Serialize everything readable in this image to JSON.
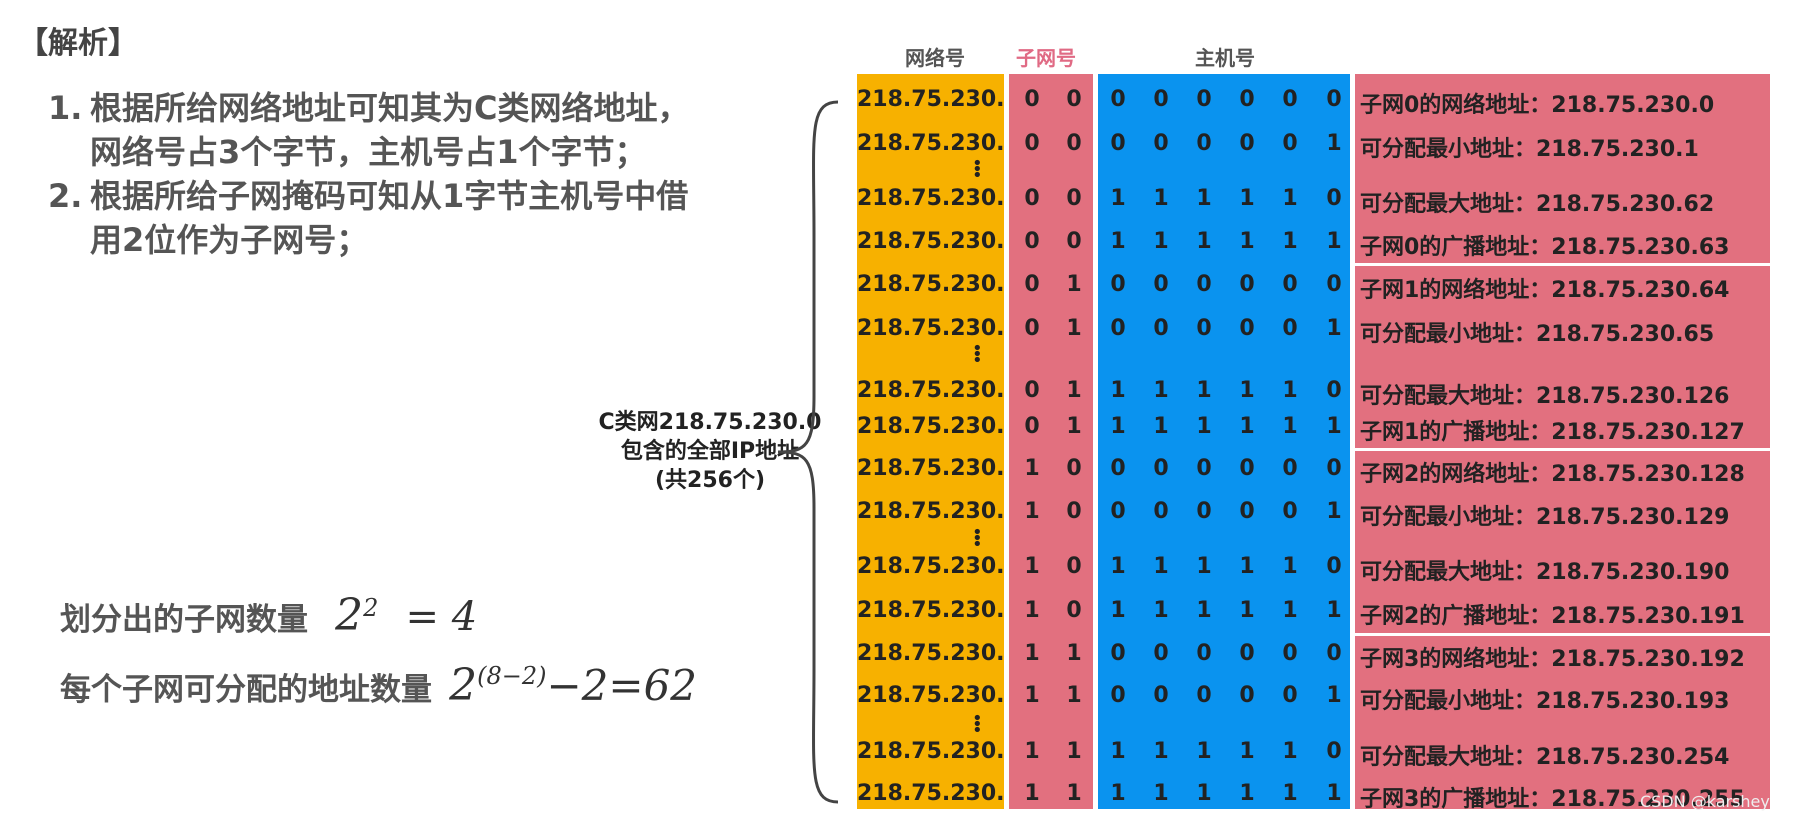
{
  "title": "【解析】",
  "points": [
    {
      "num": "1.",
      "line1": "根据所给网络地址可知其为C类网络地址，",
      "line2": "网络号占3个字节，主机号占1个字节；"
    },
    {
      "num": "2.",
      "line1": "根据所给子网掩码可知从1字节主机号中借",
      "line2": "用2位作为子网号；"
    }
  ],
  "subnet_count": {
    "label": "划分出的子网数量",
    "base": "2",
    "exp": "2",
    "rest": "= 4"
  },
  "hosts_per_subnet": {
    "label": "每个子网可分配的地址数量",
    "base": "2",
    "exp": "(8−2)",
    "rest": "−2=62"
  },
  "brace_label": {
    "line1": "C类网218.75.230.0",
    "line2": "包含的全部IP地址",
    "line3": "(共256个)"
  },
  "headers": {
    "network": "网络号",
    "subnet": "子网号",
    "host": "主机号"
  },
  "colors": {
    "network_col": "#f7b100",
    "subnet_col": "#e2707f",
    "host_col": "#0a93ef",
    "annot_col": "#e2707f",
    "subnet_header": "#e06a84"
  },
  "rows": [
    {
      "net": "218.75.230.",
      "subnet": [
        "0",
        "0"
      ],
      "host": [
        "0",
        "0",
        "0",
        "0",
        "0",
        "0"
      ],
      "annot": "子网0的网络地址：218.75.230.0"
    },
    {
      "net": "218.75.230.",
      "subnet": [
        "0",
        "0"
      ],
      "host": [
        "0",
        "0",
        "0",
        "0",
        "0",
        "1"
      ],
      "annot": "可分配最小地址：218.75.230.1"
    },
    {
      "net": "218.75.230.",
      "subnet": [
        "0",
        "0"
      ],
      "host": [
        "1",
        "1",
        "1",
        "1",
        "1",
        "0"
      ],
      "annot": "可分配最大地址：218.75.230.62"
    },
    {
      "net": "218.75.230.",
      "subnet": [
        "0",
        "0"
      ],
      "host": [
        "1",
        "1",
        "1",
        "1",
        "1",
        "1"
      ],
      "annot": "子网0的广播地址：218.75.230.63"
    },
    {
      "net": "218.75.230.",
      "subnet": [
        "0",
        "1"
      ],
      "host": [
        "0",
        "0",
        "0",
        "0",
        "0",
        "0"
      ],
      "annot": "子网1的网络地址：218.75.230.64"
    },
    {
      "net": "218.75.230.",
      "subnet": [
        "0",
        "1"
      ],
      "host": [
        "0",
        "0",
        "0",
        "0",
        "0",
        "1"
      ],
      "annot": "可分配最小地址：218.75.230.65"
    },
    {
      "net": "218.75.230.",
      "subnet": [
        "0",
        "1"
      ],
      "host": [
        "1",
        "1",
        "1",
        "1",
        "1",
        "0"
      ],
      "annot": "可分配最大地址：218.75.230.126"
    },
    {
      "net": "218.75.230.",
      "subnet": [
        "0",
        "1"
      ],
      "host": [
        "1",
        "1",
        "1",
        "1",
        "1",
        "1"
      ],
      "annot": "子网1的广播地址：218.75.230.127"
    },
    {
      "net": "218.75.230.",
      "subnet": [
        "1",
        "0"
      ],
      "host": [
        "0",
        "0",
        "0",
        "0",
        "0",
        "0"
      ],
      "annot": "子网2的网络地址：218.75.230.128"
    },
    {
      "net": "218.75.230.",
      "subnet": [
        "1",
        "0"
      ],
      "host": [
        "0",
        "0",
        "0",
        "0",
        "0",
        "1"
      ],
      "annot": "可分配最小地址：218.75.230.129"
    },
    {
      "net": "218.75.230.",
      "subnet": [
        "1",
        "0"
      ],
      "host": [
        "1",
        "1",
        "1",
        "1",
        "1",
        "0"
      ],
      "annot": "可分配最大地址：218.75.230.190"
    },
    {
      "net": "218.75.230.",
      "subnet": [
        "1",
        "0"
      ],
      "host": [
        "1",
        "1",
        "1",
        "1",
        "1",
        "1"
      ],
      "annot": "子网2的广播地址：218.75.230.191"
    },
    {
      "net": "218.75.230.",
      "subnet": [
        "1",
        "1"
      ],
      "host": [
        "0",
        "0",
        "0",
        "0",
        "0",
        "0"
      ],
      "annot": "子网3的网络地址：218.75.230.192"
    },
    {
      "net": "218.75.230.",
      "subnet": [
        "1",
        "1"
      ],
      "host": [
        "0",
        "0",
        "0",
        "0",
        "0",
        "1"
      ],
      "annot": "可分配最小地址：218.75.230.193"
    },
    {
      "net": "218.75.230.",
      "subnet": [
        "1",
        "1"
      ],
      "host": [
        "1",
        "1",
        "1",
        "1",
        "1",
        "0"
      ],
      "annot": "可分配最大地址：218.75.230.254"
    },
    {
      "net": "218.75.230.",
      "subnet": [
        "1",
        "1"
      ],
      "host": [
        "1",
        "1",
        "1",
        "1",
        "1",
        "1"
      ],
      "annot": "子网3的广播地址：218.75.230.255"
    }
  ],
  "watermark": "CSDN @karshey"
}
